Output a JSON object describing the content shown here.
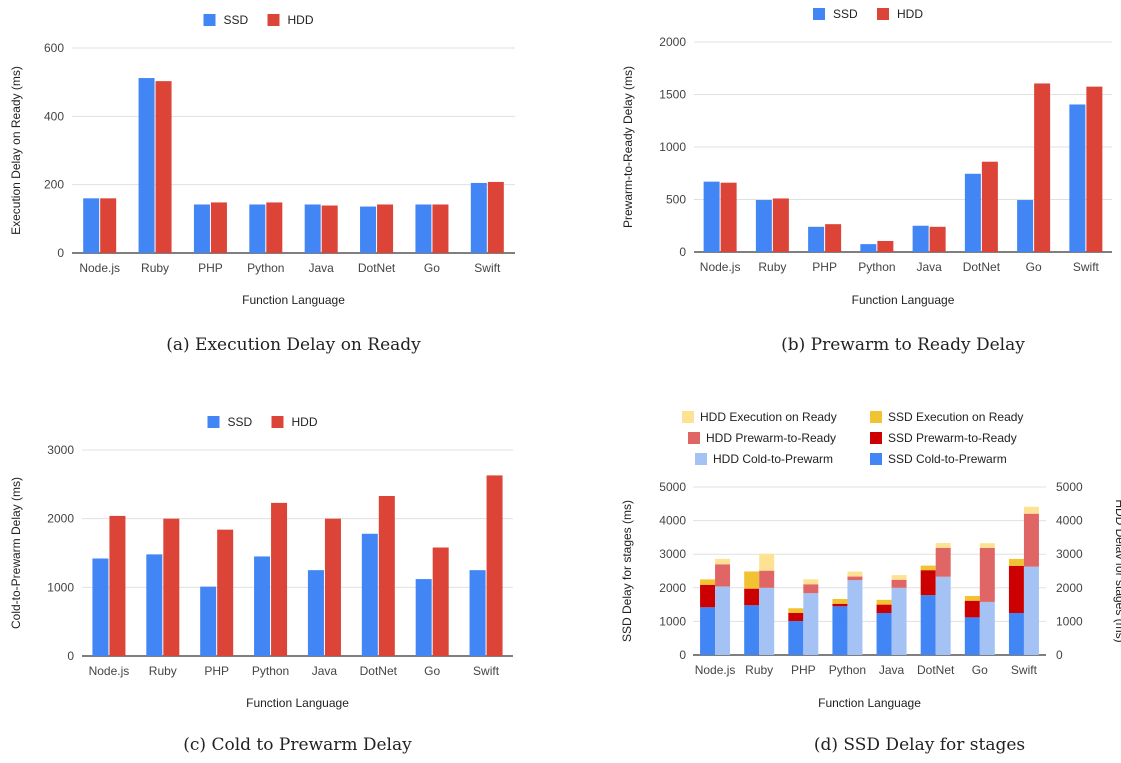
{
  "colors": {
    "ssd": "#4285f4",
    "hdd": "#db4437",
    "hdd_exec": "#fde293",
    "ssd_exec": "#f1c232",
    "hdd_prewarm": "#e06666",
    "ssd_prewarm": "#cc0000",
    "hdd_cold": "#a4c2f4",
    "ssd_cold": "#4285f4",
    "grid": "#e0e0e0",
    "axis": "#333333"
  },
  "chart_data": [
    {
      "type": "bar",
      "caption": "(a) Execution Delay on Ready",
      "xlabel": "Function Language",
      "ylabel": "Execution Delay on Ready (ms)",
      "ylim": [
        0,
        600
      ],
      "yticks": [
        0,
        200,
        400,
        600
      ],
      "categories": [
        "Node.js",
        "Ruby",
        "PHP",
        "Python",
        "Java",
        "DotNet",
        "Go",
        "Swift"
      ],
      "legend": "top",
      "series": [
        {
          "name": "SSD",
          "values": [
            160,
            512,
            142,
            142,
            142,
            136,
            142,
            205
          ]
        },
        {
          "name": "HDD",
          "values": [
            160,
            503,
            148,
            148,
            139,
            142,
            142,
            208
          ]
        }
      ]
    },
    {
      "type": "bar",
      "caption": "(b) Prewarm to Ready Delay",
      "xlabel": "Function Language",
      "ylabel": "Prewarm-to-Ready Delay (ms)",
      "ylim": [
        0,
        2000
      ],
      "yticks": [
        0,
        500,
        1000,
        1500,
        2000
      ],
      "categories": [
        "Node.js",
        "Ruby",
        "PHP",
        "Python",
        "Java",
        "DotNet",
        "Go",
        "Swift"
      ],
      "legend": "top",
      "series": [
        {
          "name": "SSD",
          "values": [
            670,
            495,
            240,
            75,
            250,
            745,
            495,
            1405
          ]
        },
        {
          "name": "HDD",
          "values": [
            660,
            510,
            265,
            105,
            240,
            860,
            1605,
            1575
          ]
        }
      ]
    },
    {
      "type": "bar",
      "caption": "(c) Cold to Prewarm Delay",
      "xlabel": "Function Language",
      "ylabel": "Cold-to-Prewarm Delay (ms)",
      "ylim": [
        0,
        3000
      ],
      "yticks": [
        0,
        1000,
        2000,
        3000
      ],
      "categories": [
        "Node.js",
        "Ruby",
        "PHP",
        "Python",
        "Java",
        "DotNet",
        "Go",
        "Swift"
      ],
      "legend": "top",
      "series": [
        {
          "name": "SSD",
          "values": [
            1420,
            1480,
            1010,
            1450,
            1250,
            1780,
            1120,
            1250
          ]
        },
        {
          "name": "HDD",
          "values": [
            2040,
            2000,
            1840,
            2230,
            2000,
            2330,
            1580,
            2630
          ]
        }
      ]
    },
    {
      "type": "bar",
      "stacked": true,
      "caption": "(d) SSD Delay for stages",
      "xlabel": "Function Language",
      "ylabel": "SSD Delay for stages (ms)",
      "ylabel_right": "HDD Delav for stages (ms)",
      "ylim": [
        0,
        5000
      ],
      "yticks": [
        0,
        1000,
        2000,
        3000,
        4000,
        5000
      ],
      "categories": [
        "Node.js",
        "Ruby",
        "PHP",
        "Python",
        "Java",
        "DotNet",
        "Go",
        "Swift"
      ],
      "legend_entries": [
        "HDD Execution on Ready",
        "SSD Execution on Ready",
        "HDD Prewarm-to-Ready",
        "SSD Prewarm-to-Ready",
        "HDD Cold-to-Prewarm",
        "SSD Cold-to-Prewarm"
      ],
      "ssd_stack": [
        {
          "name": "SSD Cold-to-Prewarm",
          "values": [
            1420,
            1480,
            1010,
            1450,
            1250,
            1780,
            1120,
            1250
          ]
        },
        {
          "name": "SSD Prewarm-to-Ready",
          "values": [
            670,
            495,
            240,
            75,
            250,
            745,
            495,
            1405
          ]
        },
        {
          "name": "SSD Execution on Ready",
          "values": [
            160,
            512,
            142,
            142,
            142,
            136,
            142,
            205
          ]
        }
      ],
      "hdd_stack": [
        {
          "name": "HDD Cold-to-Prewarm",
          "values": [
            2040,
            2000,
            1840,
            2230,
            2000,
            2330,
            1580,
            2630
          ]
        },
        {
          "name": "HDD Prewarm-to-Ready",
          "values": [
            660,
            510,
            265,
            105,
            240,
            860,
            1605,
            1575
          ]
        },
        {
          "name": "HDD Execution on Ready",
          "values": [
            160,
            503,
            148,
            148,
            139,
            142,
            142,
            208
          ]
        }
      ]
    }
  ]
}
